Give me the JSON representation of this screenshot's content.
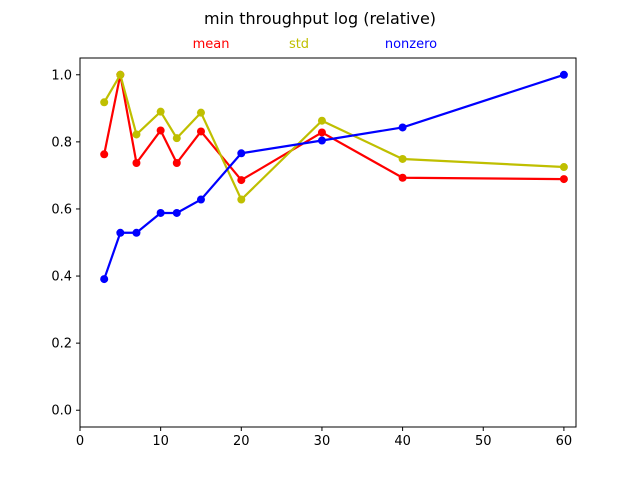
{
  "chart_data": {
    "type": "line",
    "title": "min throughput log (relative)",
    "xlabel": "",
    "ylabel": "",
    "xlim": [
      0,
      61.5
    ],
    "ylim": [
      -0.05,
      1.05
    ],
    "x_ticks": [
      0,
      10,
      20,
      30,
      40,
      50,
      60
    ],
    "y_ticks": [
      0.0,
      0.2,
      0.4,
      0.6,
      0.8,
      1.0
    ],
    "x_tick_labels": [
      "0",
      "10",
      "20",
      "30",
      "40",
      "50",
      "60"
    ],
    "y_tick_labels": [
      "0.0",
      "0.2",
      "0.4",
      "0.6",
      "0.8",
      "1.0"
    ],
    "grid": false,
    "legend_placement": "top",
    "x": [
      3,
      5,
      7,
      10,
      12,
      15,
      20,
      30,
      40,
      60
    ],
    "series": [
      {
        "name": "mean",
        "color": "#ff0000",
        "values": [
          0.763,
          1.0,
          0.737,
          0.834,
          0.737,
          0.831,
          0.686,
          0.828,
          0.693,
          0.689
        ]
      },
      {
        "name": "std",
        "color": "#bfbf00",
        "values": [
          0.918,
          1.0,
          0.822,
          0.89,
          0.811,
          0.887,
          0.628,
          0.863,
          0.749,
          0.725
        ]
      },
      {
        "name": "nonzero",
        "color": "#0000ff",
        "values": [
          0.391,
          0.529,
          0.529,
          0.588,
          0.588,
          0.628,
          0.766,
          0.804,
          0.843,
          1.0
        ]
      }
    ]
  }
}
